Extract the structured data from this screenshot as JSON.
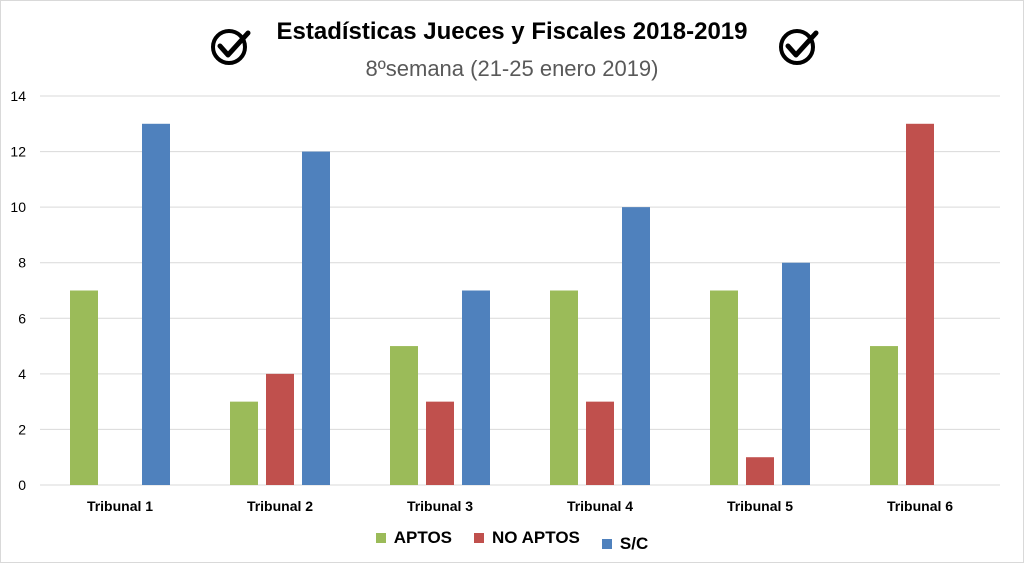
{
  "chart_data": {
    "type": "bar",
    "title": "Estadísticas Jueces y Fiscales 2018-2019",
    "subtitle": "8ºsemana (21-25 enero 2019)",
    "categories": [
      "Tribunal 1",
      "Tribunal 2",
      "Tribunal 3",
      "Tribunal 4",
      "Tribunal 5",
      "Tribunal 6"
    ],
    "series": [
      {
        "name": "APTOS",
        "values": [
          7,
          3,
          5,
          7,
          7,
          5
        ],
        "color": "#9bbb59"
      },
      {
        "name": "NO APTOS",
        "values": [
          0,
          4,
          3,
          3,
          1,
          13
        ],
        "color": "#c0504d"
      },
      {
        "name": "S/C",
        "values": [
          13,
          12,
          7,
          10,
          8,
          0
        ],
        "color": "#4f81bd"
      }
    ],
    "ylim": [
      0,
      14
    ],
    "yticks": [
      0,
      2,
      4,
      6,
      8,
      10,
      12,
      14
    ],
    "grid": true,
    "legend": "bottom",
    "icons": [
      "check-badge-icon",
      "check-badge-icon"
    ]
  }
}
